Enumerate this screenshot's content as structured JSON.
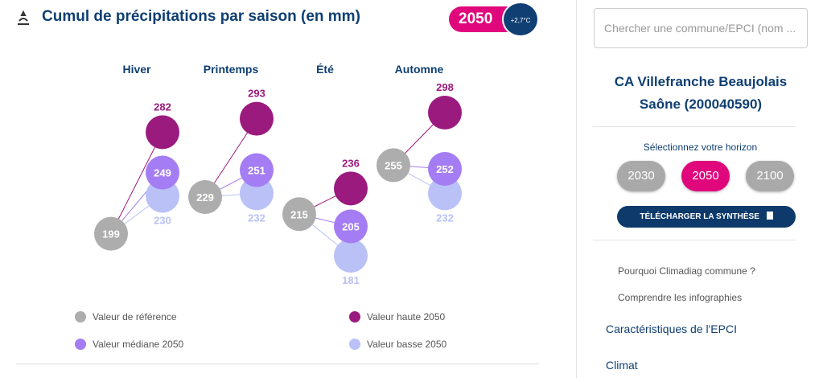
{
  "header": {
    "title": "Cumul de précipitations par saison (en mm)",
    "horizon_badge": "2050",
    "warming_badge": "+2,7°C"
  },
  "chart_data": {
    "type": "dotplot",
    "categories": [
      "Hiver",
      "Printemps",
      "Été",
      "Automne"
    ],
    "series": [
      {
        "name": "Valeur de référence",
        "color": "#adadad",
        "values": [
          199,
          229,
          215,
          255
        ]
      },
      {
        "name": "Valeur basse 2050",
        "color": "#b9c1f7",
        "values": [
          230,
          232,
          181,
          232
        ]
      },
      {
        "name": "Valeur médiane 2050",
        "color": "#a47cf3",
        "values": [
          249,
          251,
          205,
          252
        ]
      },
      {
        "name": "Valeur haute 2050",
        "color": "#9b1a7e",
        "values": [
          282,
          293,
          236,
          298
        ]
      }
    ]
  },
  "sidebar": {
    "search_placeholder": "Chercher une commune/EPCI (nom ...",
    "territory": "CA Villefranche Beaujolais Saône (200040590)",
    "horizon_label": "Sélectionnez votre horizon",
    "horizons": [
      "2030",
      "2050",
      "2100"
    ],
    "download": "TÉLÉCHARGER LA SYNTHÈSE",
    "links": [
      "Pourquoi Climadiag commune ?",
      "Comprendre les infographies"
    ],
    "sections": [
      "Caractéristiques de l'EPCI",
      "Climat"
    ]
  }
}
